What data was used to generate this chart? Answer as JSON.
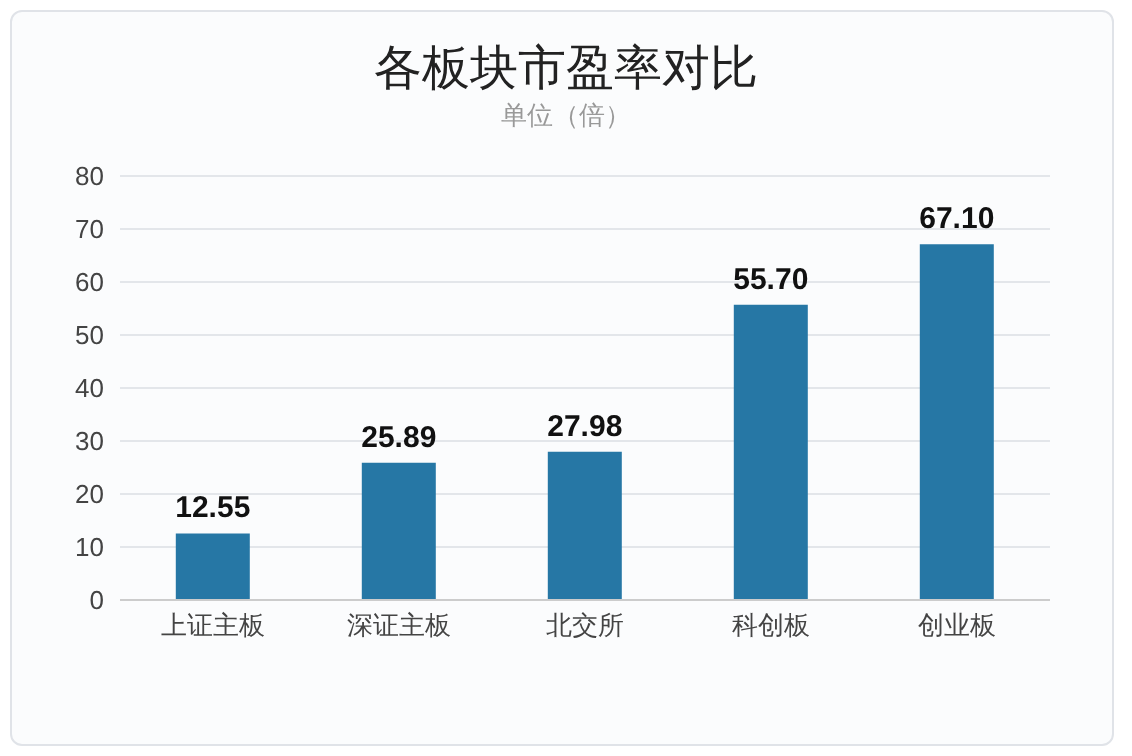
{
  "chart_data": {
    "type": "bar",
    "title": "各板块市盈率对比",
    "subtitle": "单位（倍）",
    "categories": [
      "上证主板",
      "深证主板",
      "北交所",
      "科创板",
      "创业板"
    ],
    "values": [
      12.55,
      25.89,
      27.98,
      55.7,
      67.1
    ],
    "value_labels": [
      "12.55",
      "25.89",
      "27.98",
      "55.70",
      "67.10"
    ],
    "color": "#2677a5",
    "ylim": [
      0,
      80
    ],
    "yticks": [
      0,
      10,
      20,
      30,
      40,
      50,
      60,
      70,
      80
    ],
    "grid": "y"
  }
}
